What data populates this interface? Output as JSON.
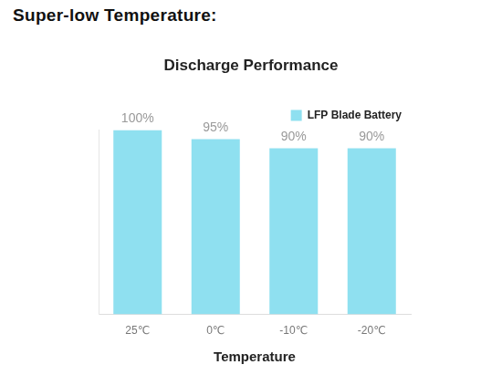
{
  "heading": "Super-low Temperature:",
  "chart_data": {
    "type": "bar",
    "title": "Discharge Performance",
    "x_label": "Temperature",
    "categories": [
      "25℃",
      "0℃",
      "-10℃",
      "-20℃"
    ],
    "series": [
      {
        "name": "LFP Blade Battery",
        "color": "#8fe0f0",
        "values": [
          100,
          95,
          90,
          90
        ],
        "value_labels": [
          "100%",
          "95%",
          "90%",
          "90%"
        ]
      }
    ],
    "ylim": [
      0,
      100
    ],
    "grid": false,
    "legend": "top-right",
    "data_labels": true,
    "tick_labels": "x"
  }
}
